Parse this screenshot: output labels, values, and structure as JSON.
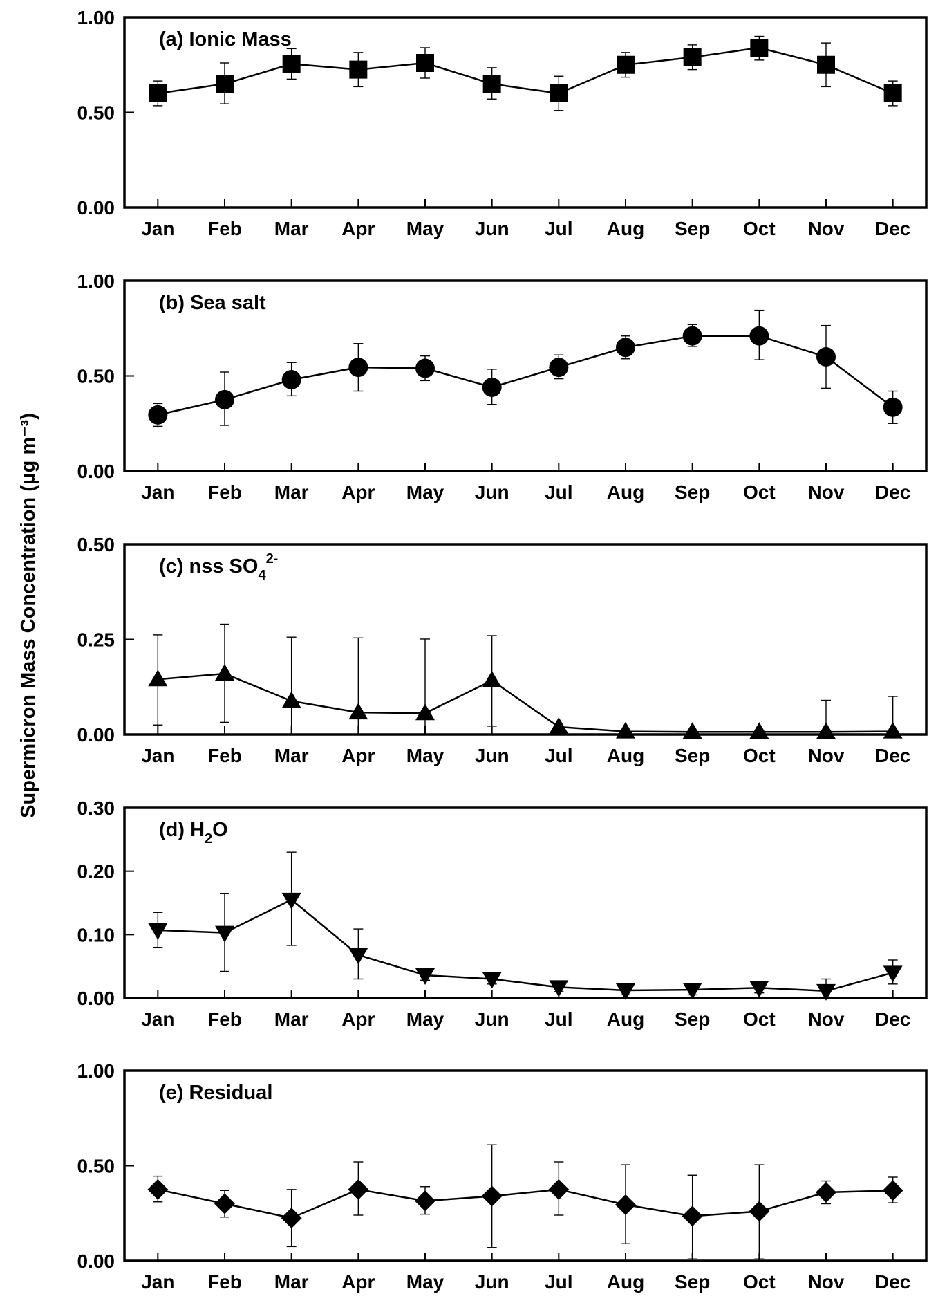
{
  "figure": {
    "y_axis_title": "Supermicron Mass Concentration (μg m⁻³)"
  },
  "chart_data": [
    {
      "type": "line",
      "panel": "a",
      "title": "(a) Ionic Mass",
      "marker": "square",
      "categories": [
        "Jan",
        "Feb",
        "Mar",
        "Apr",
        "May",
        "Jun",
        "Jul",
        "Aug",
        "Sep",
        "Oct",
        "Nov",
        "Dec"
      ],
      "values": [
        0.6,
        0.65,
        0.755,
        0.725,
        0.76,
        0.65,
        0.6,
        0.75,
        0.79,
        0.84,
        0.75,
        0.6
      ],
      "err_low": [
        0.535,
        0.545,
        0.675,
        0.635,
        0.68,
        0.57,
        0.51,
        0.685,
        0.725,
        0.775,
        0.635,
        0.535
      ],
      "err_high": [
        0.665,
        0.76,
        0.835,
        0.815,
        0.84,
        0.735,
        0.69,
        0.815,
        0.855,
        0.9,
        0.865,
        0.665
      ],
      "ylim": [
        0,
        1.0
      ],
      "yticks": [
        "0.00",
        "0.50",
        "1.00"
      ]
    },
    {
      "type": "line",
      "panel": "b",
      "title": "(b) Sea salt",
      "marker": "circle",
      "categories": [
        "Jan",
        "Feb",
        "Mar",
        "Apr",
        "May",
        "Jun",
        "Jul",
        "Aug",
        "Sep",
        "Oct",
        "Nov",
        "Dec"
      ],
      "values": [
        0.295,
        0.375,
        0.48,
        0.545,
        0.54,
        0.44,
        0.545,
        0.65,
        0.71,
        0.71,
        0.6,
        0.335
      ],
      "err_low": [
        0.235,
        0.24,
        0.395,
        0.42,
        0.475,
        0.35,
        0.485,
        0.59,
        0.655,
        0.585,
        0.435,
        0.25
      ],
      "err_high": [
        0.355,
        0.52,
        0.57,
        0.67,
        0.605,
        0.535,
        0.61,
        0.71,
        0.77,
        0.845,
        0.765,
        0.42
      ],
      "ylim": [
        0,
        1.0
      ],
      "yticks": [
        "0.00",
        "0.50",
        "1.00"
      ]
    },
    {
      "type": "line",
      "panel": "c",
      "title_main": "(c) nss SO",
      "title_sub": "4",
      "title_sup": "2-",
      "marker": "triangle-up",
      "categories": [
        "Jan",
        "Feb",
        "Mar",
        "Apr",
        "May",
        "Jun",
        "Jul",
        "Aug",
        "Sep",
        "Oct",
        "Nov",
        "Dec"
      ],
      "values": [
        0.145,
        0.16,
        0.088,
        0.058,
        0.056,
        0.142,
        0.02,
        0.008,
        0.007,
        0.007,
        0.007,
        0.008
      ],
      "err_low": [
        0.025,
        0.032,
        0.0,
        0.0,
        0.0,
        0.022,
        0.0,
        0.0,
        0.0,
        0.0,
        0.0,
        0.0
      ],
      "err_high": [
        0.262,
        0.29,
        0.256,
        0.254,
        0.251,
        0.26,
        0.02,
        0.008,
        0.007,
        0.007,
        0.09,
        0.1
      ],
      "ylim": [
        0,
        0.5
      ],
      "yticks": [
        "0.00",
        "0.25",
        "0.50"
      ]
    },
    {
      "type": "line",
      "panel": "d",
      "title_main": "(d) H",
      "title_sub": "2",
      "title_tail": "O",
      "marker": "triangle-down",
      "categories": [
        "Jan",
        "Feb",
        "Mar",
        "Apr",
        "May",
        "Jun",
        "Jul",
        "Aug",
        "Sep",
        "Oct",
        "Nov",
        "Dec"
      ],
      "values": [
        0.107,
        0.103,
        0.155,
        0.068,
        0.036,
        0.03,
        0.017,
        0.012,
        0.013,
        0.016,
        0.011,
        0.04
      ],
      "err_low": [
        0.08,
        0.042,
        0.083,
        0.03,
        0.028,
        0.022,
        0.01,
        0.005,
        0.005,
        0.008,
        0.0,
        0.022
      ],
      "err_high": [
        0.135,
        0.165,
        0.23,
        0.109,
        0.047,
        0.04,
        0.026,
        0.022,
        0.022,
        0.026,
        0.03,
        0.06
      ],
      "ylim": [
        0,
        0.3
      ],
      "yticks": [
        "0.00",
        "0.10",
        "0.20",
        "0.30"
      ]
    },
    {
      "type": "line",
      "panel": "e",
      "title": "(e) Residual",
      "marker": "diamond",
      "categories": [
        "Jan",
        "Feb",
        "Mar",
        "Apr",
        "May",
        "Jun",
        "Jul",
        "Aug",
        "Sep",
        "Oct",
        "Nov",
        "Dec"
      ],
      "values": [
        0.375,
        0.3,
        0.225,
        0.375,
        0.315,
        0.34,
        0.375,
        0.295,
        0.235,
        0.26,
        0.36,
        0.37
      ],
      "err_low": [
        0.31,
        0.23,
        0.075,
        0.24,
        0.245,
        0.07,
        0.24,
        0.09,
        0.01,
        0.01,
        0.3,
        0.305
      ],
      "err_high": [
        0.445,
        0.37,
        0.375,
        0.52,
        0.39,
        0.61,
        0.52,
        0.505,
        0.45,
        0.505,
        0.42,
        0.44
      ],
      "ylim": [
        0,
        1.0
      ],
      "yticks": [
        "0.00",
        "0.50",
        "1.00"
      ]
    }
  ]
}
